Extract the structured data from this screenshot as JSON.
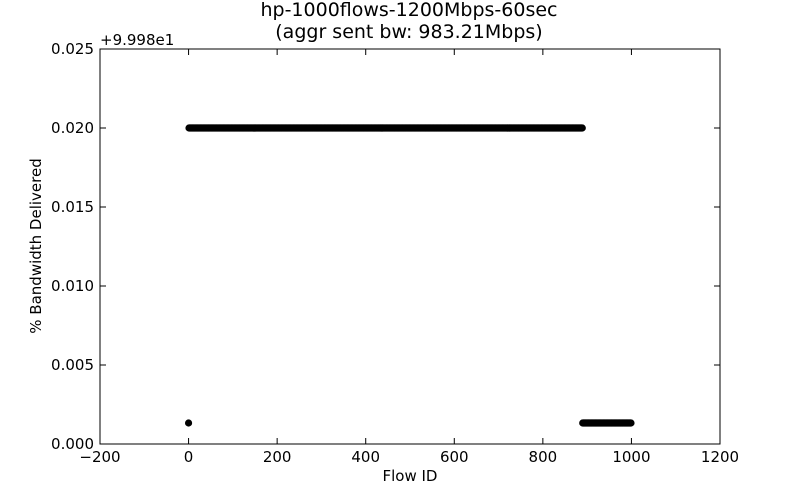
{
  "chart_data": {
    "type": "scatter",
    "title_line1": "hp-1000flows-1200Mbps-60sec",
    "title_line2": "(aggr sent bw: 983.21Mbps)",
    "xlabel": "Flow ID",
    "ylabel": "% Bandwidth Delivered",
    "y_offset_label": "+9.998e1",
    "xlim": [
      -200,
      1200
    ],
    "ylim": [
      0.0,
      0.025
    ],
    "x_ticks": [
      -200,
      0,
      200,
      400,
      600,
      800,
      1000,
      1200
    ],
    "x_tick_labels": [
      "−200",
      "0",
      "200",
      "400",
      "600",
      "800",
      "1000",
      "1200"
    ],
    "y_ticks": [
      0.0,
      0.005,
      0.01,
      0.015,
      0.02,
      0.025
    ],
    "y_tick_labels": [
      "0.000",
      "0.005",
      "0.010",
      "0.015",
      "0.020",
      "0.025"
    ],
    "grid": false,
    "marker_color": "#000000",
    "series": [
      {
        "segments": [
          {
            "x_start": 0,
            "x_end": 0,
            "y": 0.00133
          },
          {
            "x_start": 1,
            "x_end": 889,
            "y": 0.02
          },
          {
            "x_start": 890,
            "x_end": 999,
            "y": 0.00133
          }
        ]
      }
    ]
  }
}
